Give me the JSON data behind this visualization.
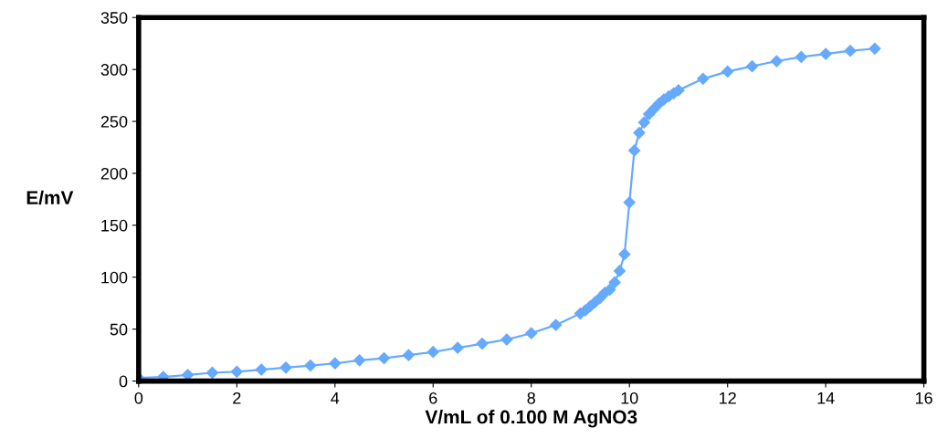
{
  "chart_data": {
    "type": "line",
    "xlabel": "V/mL of 0.100 M AgNO3",
    "ylabel": "E/mV",
    "x": [
      0,
      0.5,
      1,
      1.5,
      2,
      2.5,
      3,
      3.5,
      4,
      4.5,
      5,
      5.5,
      6,
      6.5,
      7,
      7.5,
      8,
      8.5,
      9,
      9.1,
      9.2,
      9.3,
      9.4,
      9.5,
      9.6,
      9.7,
      9.8,
      9.9,
      10,
      10.1,
      10.2,
      10.3,
      10.4,
      10.5,
      10.6,
      10.7,
      10.8,
      10.9,
      11,
      11.5,
      12,
      12.5,
      13,
      13.5,
      14,
      14.5,
      15
    ],
    "series": [
      {
        "color": "#66aaff",
        "values": [
          3,
          4,
          6,
          8,
          9,
          11,
          13,
          15,
          17,
          20,
          22,
          25,
          28,
          32,
          36,
          40,
          46,
          54,
          65,
          68,
          72,
          76,
          80,
          85,
          88,
          95,
          106,
          122,
          172,
          222,
          239,
          249,
          257,
          262,
          267,
          271,
          274,
          277,
          280,
          291,
          298,
          303,
          308,
          312,
          315,
          318,
          320
        ]
      }
    ],
    "xlim": [
      0,
      16
    ],
    "xticks": [
      0,
      2,
      4,
      6,
      8,
      10,
      12,
      14,
      16
    ],
    "ylim": [
      0,
      350
    ],
    "yticks": [
      0,
      50,
      100,
      150,
      200,
      250,
      300,
      350
    ],
    "grid": false,
    "marker": "diamond",
    "line_style": "solid"
  }
}
